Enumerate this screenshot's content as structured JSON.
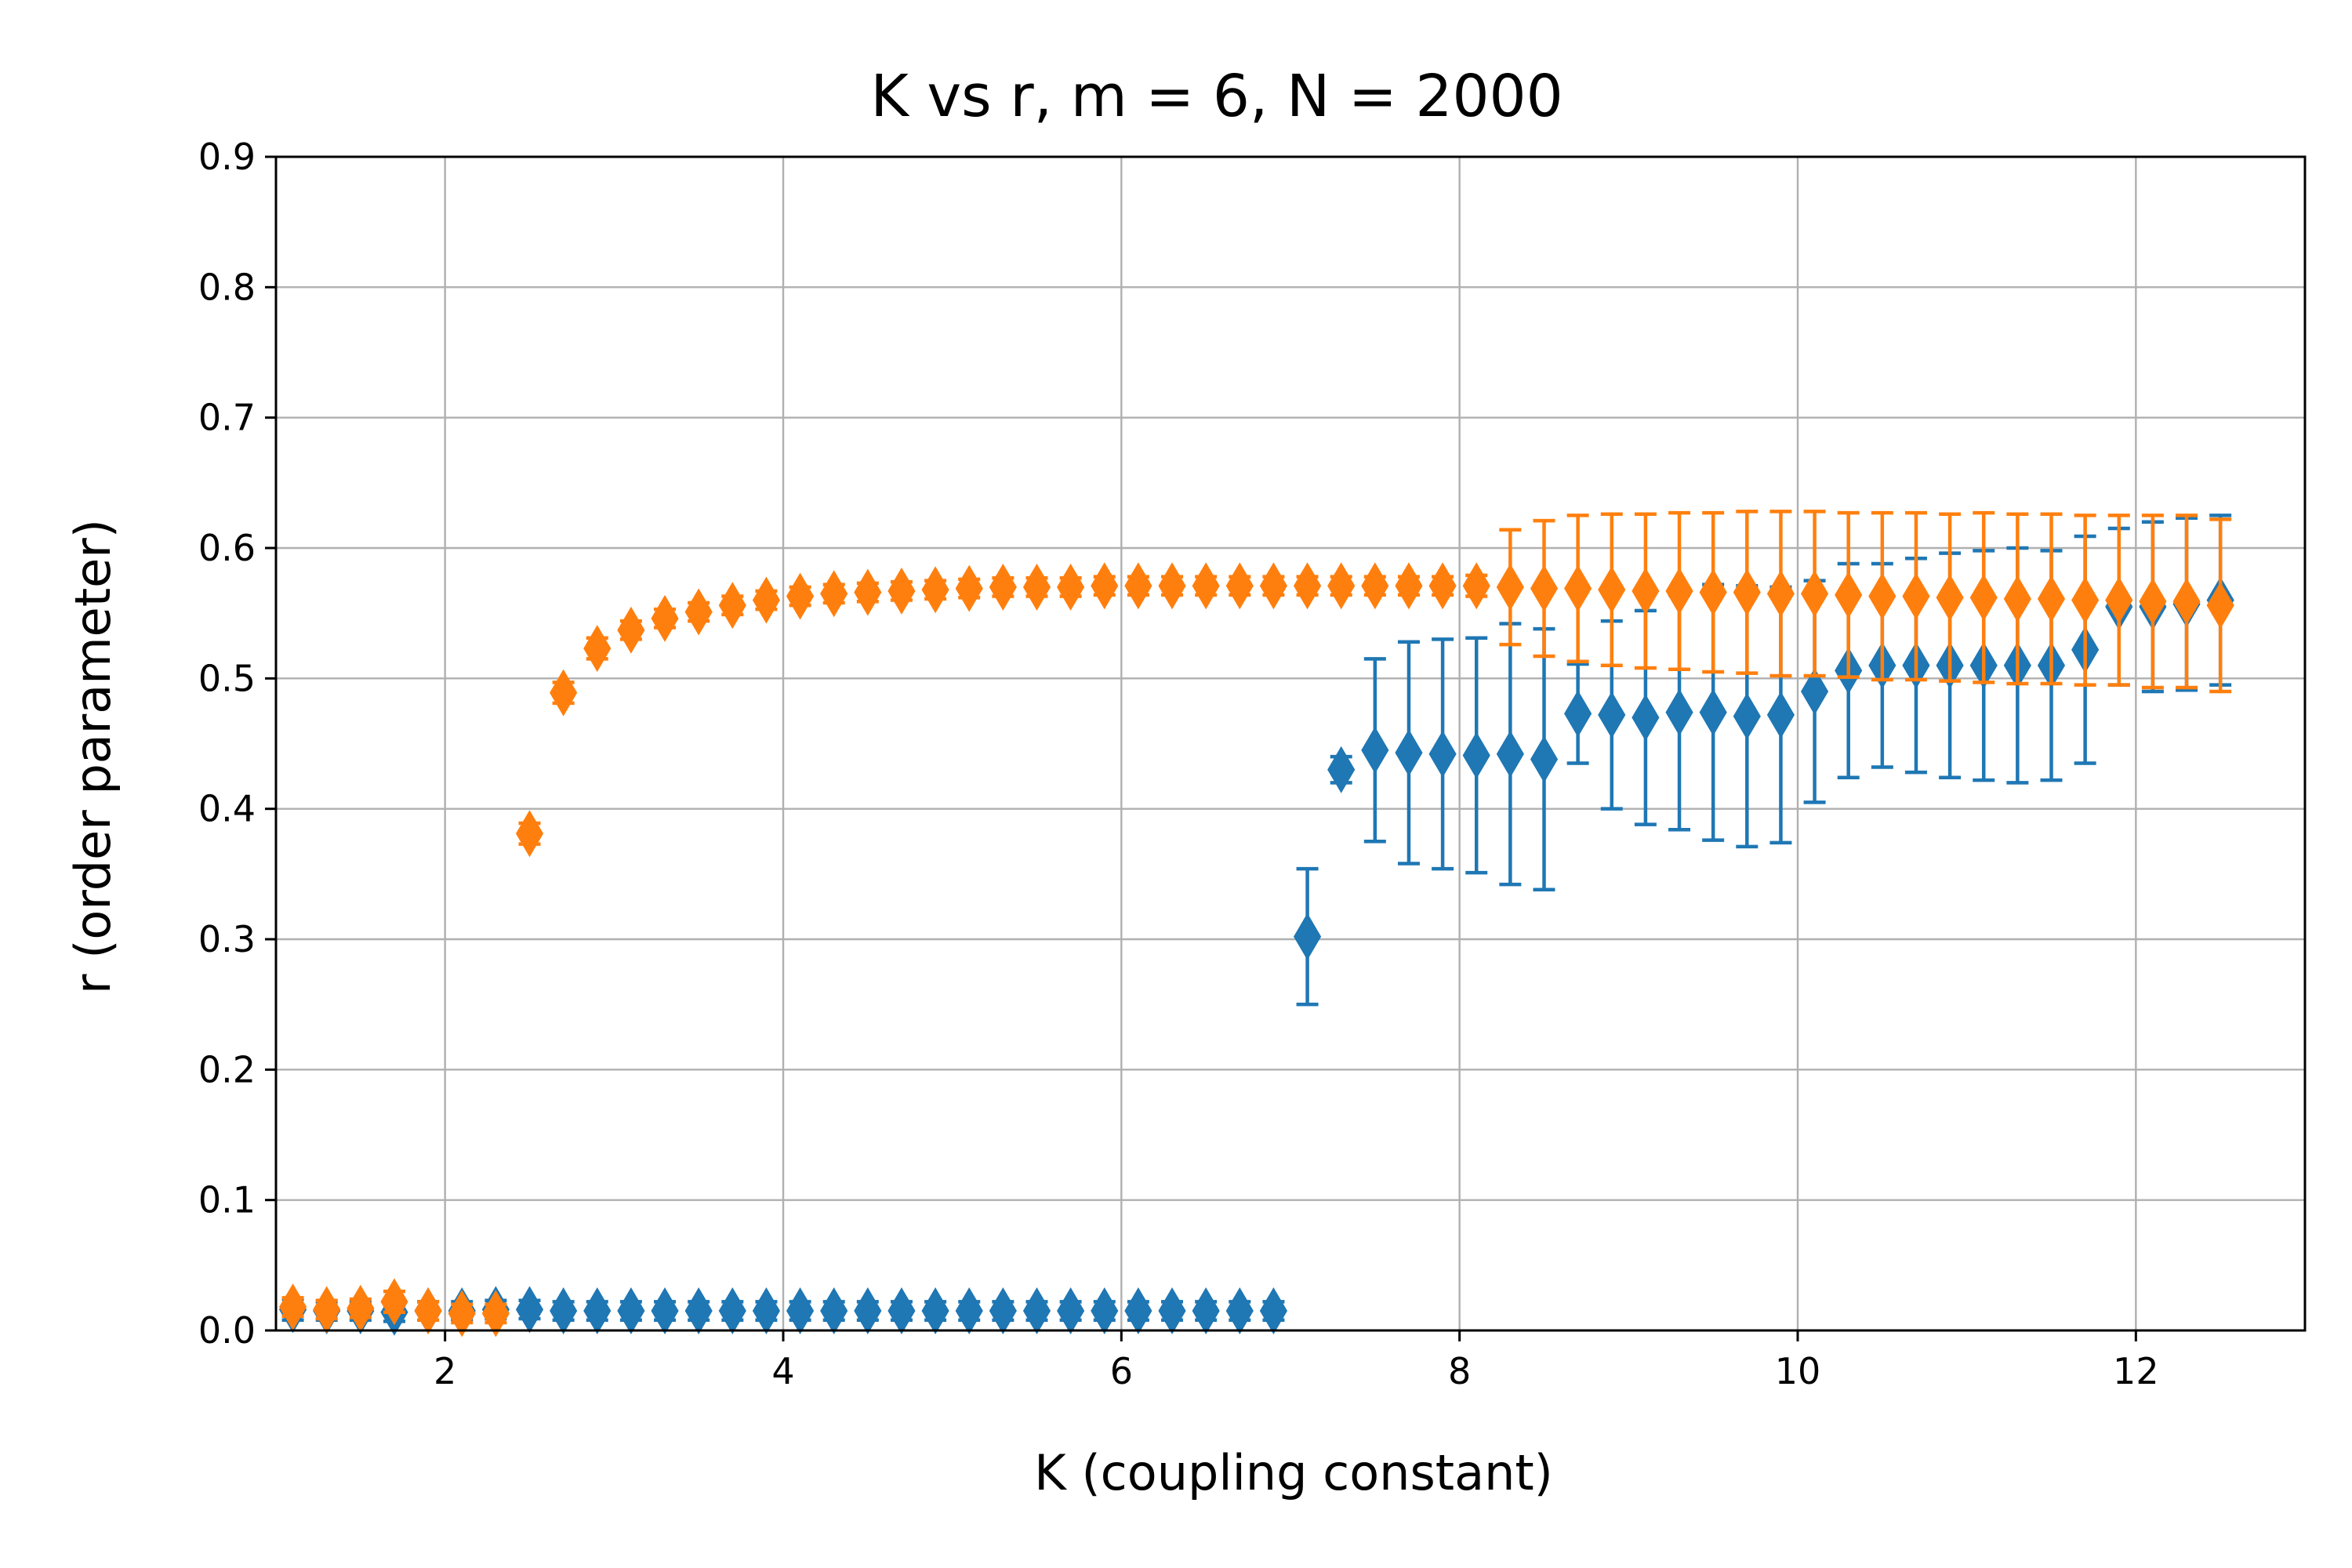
{
  "chart_data": {
    "type": "scatter",
    "title": "K vs r, m = 6, N = 2000",
    "xlabel": "K (coupling constant)",
    "ylabel": "r (order parameter)",
    "xlim": [
      1.0,
      13.0
    ],
    "ylim": [
      0.0,
      0.9
    ],
    "xticks": [
      "2",
      "4",
      "6",
      "8",
      "10",
      "12"
    ],
    "yticks": [
      "0.0",
      "0.1",
      "0.2",
      "0.3",
      "0.4",
      "0.5",
      "0.6",
      "0.7",
      "0.8",
      "0.9"
    ],
    "grid": true,
    "marker": "thin-diamond",
    "error_bars": true,
    "series": [
      {
        "color": "#1f77b4",
        "x": [
          1.1,
          1.3,
          1.5,
          1.7,
          1.9,
          2.1,
          2.3,
          2.5,
          2.7,
          2.9,
          3.1,
          3.3,
          3.5,
          3.7,
          3.9,
          4.1,
          4.3,
          4.5,
          4.7,
          4.9,
          5.1,
          5.3,
          5.5,
          5.7,
          5.9,
          6.1,
          6.3,
          6.5,
          6.7,
          6.9,
          7.1,
          7.3,
          7.5,
          7.7,
          7.9,
          8.1,
          8.3,
          8.5,
          8.7,
          8.9,
          9.1,
          9.3,
          9.5,
          9.7,
          9.9,
          10.1,
          10.3,
          10.5,
          10.7,
          10.9,
          11.1,
          11.3,
          11.5,
          11.7,
          11.9,
          12.1,
          12.3,
          12.5
        ],
        "y": [
          0.016,
          0.015,
          0.015,
          0.014,
          0.015,
          0.015,
          0.016,
          0.016,
          0.015,
          0.015,
          0.015,
          0.015,
          0.015,
          0.015,
          0.015,
          0.015,
          0.015,
          0.015,
          0.015,
          0.015,
          0.015,
          0.015,
          0.015,
          0.015,
          0.015,
          0.015,
          0.015,
          0.015,
          0.015,
          0.015,
          0.302,
          0.43,
          0.445,
          0.443,
          0.442,
          0.441,
          0.442,
          0.438,
          0.473,
          0.472,
          0.47,
          0.474,
          0.474,
          0.471,
          0.472,
          0.49,
          0.506,
          0.51,
          0.51,
          0.51,
          0.51,
          0.51,
          0.51,
          0.522,
          0.555,
          0.555,
          0.557,
          0.56
        ],
        "err": [
          0.008,
          0.007,
          0.007,
          0.007,
          0.007,
          0.007,
          0.007,
          0.007,
          0.007,
          0.007,
          0.007,
          0.007,
          0.007,
          0.007,
          0.007,
          0.007,
          0.007,
          0.007,
          0.007,
          0.007,
          0.007,
          0.007,
          0.007,
          0.007,
          0.007,
          0.007,
          0.007,
          0.007,
          0.007,
          0.007,
          0.052,
          0.01,
          0.07,
          0.085,
          0.088,
          0.09,
          0.1,
          0.1,
          0.038,
          0.072,
          0.082,
          0.09,
          0.098,
          0.1,
          0.098,
          0.085,
          0.082,
          0.078,
          0.082,
          0.086,
          0.088,
          0.09,
          0.088,
          0.087,
          0.06,
          0.065,
          0.066,
          0.065
        ]
      },
      {
        "color": "#ff7f0e",
        "x": [
          1.1,
          1.3,
          1.5,
          1.7,
          1.9,
          2.1,
          2.3,
          2.5,
          2.7,
          2.9,
          3.1,
          3.3,
          3.5,
          3.7,
          3.9,
          4.1,
          4.3,
          4.5,
          4.7,
          4.9,
          5.1,
          5.3,
          5.5,
          5.7,
          5.9,
          6.1,
          6.3,
          6.5,
          6.7,
          6.9,
          7.1,
          7.3,
          7.5,
          7.7,
          7.9,
          8.1,
          8.3,
          8.5,
          8.7,
          8.9,
          9.1,
          9.3,
          9.5,
          9.7,
          9.9,
          10.1,
          10.3,
          10.5,
          10.7,
          10.9,
          11.1,
          11.3,
          11.5,
          11.7,
          11.9,
          12.1,
          12.3,
          12.5
        ],
        "y": [
          0.018,
          0.016,
          0.017,
          0.022,
          0.015,
          0.013,
          0.013,
          0.381,
          0.489,
          0.523,
          0.537,
          0.546,
          0.551,
          0.556,
          0.56,
          0.563,
          0.565,
          0.566,
          0.567,
          0.568,
          0.569,
          0.57,
          0.57,
          0.57,
          0.571,
          0.571,
          0.571,
          0.571,
          0.571,
          0.571,
          0.571,
          0.571,
          0.571,
          0.571,
          0.571,
          0.571,
          0.57,
          0.569,
          0.569,
          0.568,
          0.567,
          0.567,
          0.566,
          0.566,
          0.565,
          0.565,
          0.564,
          0.563,
          0.563,
          0.562,
          0.562,
          0.561,
          0.561,
          0.56,
          0.56,
          0.559,
          0.559,
          0.556
        ],
        "err": [
          0.007,
          0.007,
          0.007,
          0.008,
          0.007,
          0.007,
          0.007,
          0.008,
          0.008,
          0.008,
          0.007,
          0.007,
          0.007,
          0.007,
          0.007,
          0.007,
          0.007,
          0.007,
          0.007,
          0.007,
          0.007,
          0.007,
          0.007,
          0.007,
          0.007,
          0.007,
          0.007,
          0.007,
          0.007,
          0.007,
          0.007,
          0.007,
          0.007,
          0.007,
          0.007,
          0.008,
          0.044,
          0.052,
          0.056,
          0.058,
          0.059,
          0.06,
          0.061,
          0.062,
          0.063,
          0.063,
          0.063,
          0.064,
          0.064,
          0.064,
          0.065,
          0.065,
          0.065,
          0.065,
          0.065,
          0.066,
          0.066,
          0.066
        ]
      }
    ]
  }
}
